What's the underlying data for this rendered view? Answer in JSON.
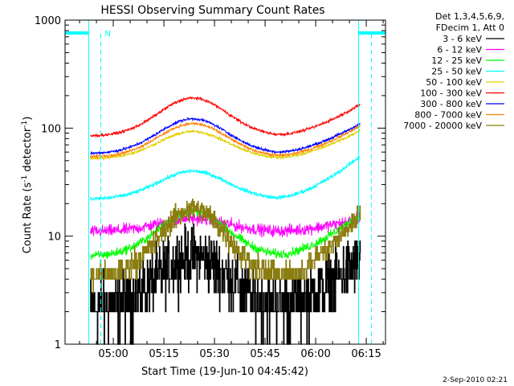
{
  "chart_data": {
    "type": "line",
    "title": "HESSI Observing Summary Count Rates",
    "xlabel": "Start Time (19-Jun-10 04:45:42)",
    "ylabel_main": "Count Rate (s",
    "ylabel_sup1": "-1",
    "ylabel_mid": " detector",
    "ylabel_sup2": "-1",
    "ylabel_end": ")",
    "y_scale": "log",
    "ylim": [
      1,
      1000
    ],
    "xlim_minutes": [
      0,
      95
    ],
    "x_tick_labels": [
      "05:00",
      "05:15",
      "05:30",
      "05:45",
      "06:00",
      "06:15"
    ],
    "x_tick_minutes": [
      14.3,
      29.3,
      44.3,
      59.3,
      74.3,
      89.3
    ],
    "y_tick_labels": [
      "1",
      "10",
      "100",
      "1000"
    ],
    "y_tick_values": [
      1,
      10,
      100,
      1000
    ],
    "legend_placement": "right",
    "legend_header": [
      "Det 1,3,4,5,6,9,",
      "FDecim 1, Att 0"
    ],
    "night_intervals_minutes": [
      [
        0,
        7
      ],
      [
        87,
        95
      ]
    ],
    "saa_marker_minutes": [
      10.6,
      90.8
    ],
    "saa_marker_label": "N",
    "data_start_minute": 7.5,
    "data_end_minute": 87.5,
    "date_stamp": "2-Sep-2010 02:21",
    "series": [
      {
        "name": "3 - 6 keV",
        "color": "#000000",
        "base": 2.2,
        "peak": 6.5,
        "end": 6.0,
        "noise": 0.45,
        "quantized": true
      },
      {
        "name": "6 - 12 keV",
        "color": "#ff00ff",
        "base": 11.0,
        "peak": 14.5,
        "end": 14.5,
        "noise": 0.09,
        "quantized": false
      },
      {
        "name": "12 - 25 keV",
        "color": "#00ff00",
        "base": 6.5,
        "peak": 17.0,
        "end": 16.0,
        "noise": 0.07,
        "quantized": false
      },
      {
        "name": "25 - 50 keV",
        "color": "#00ffff",
        "base": 22.0,
        "peak": 40.0,
        "end": 55.0,
        "noise": 0.03,
        "quantized": false
      },
      {
        "name": "50 - 100 keV",
        "color": "#e0d000",
        "base": 52.0,
        "peak": 93.0,
        "end": 95.0,
        "noise": 0.02,
        "quantized": false
      },
      {
        "name": "100 - 300 keV",
        "color": "#ff0000",
        "base": 84.0,
        "peak": 190.0,
        "end": 165.0,
        "noise": 0.02,
        "quantized": false
      },
      {
        "name": "300 - 800 keV",
        "color": "#0000ff",
        "base": 58.0,
        "peak": 122.0,
        "end": 110.0,
        "noise": 0.02,
        "quantized": false
      },
      {
        "name": "800 - 7000 keV",
        "color": "#ff8000",
        "base": 54.0,
        "peak": 110.0,
        "end": 105.0,
        "noise": 0.02,
        "quantized": false
      },
      {
        "name": "7000 - 20000 keV",
        "color": "#8b7d10",
        "base": 4.0,
        "peak": 18.0,
        "end": 16.0,
        "noise": 0.18,
        "quantized": true
      }
    ]
  }
}
